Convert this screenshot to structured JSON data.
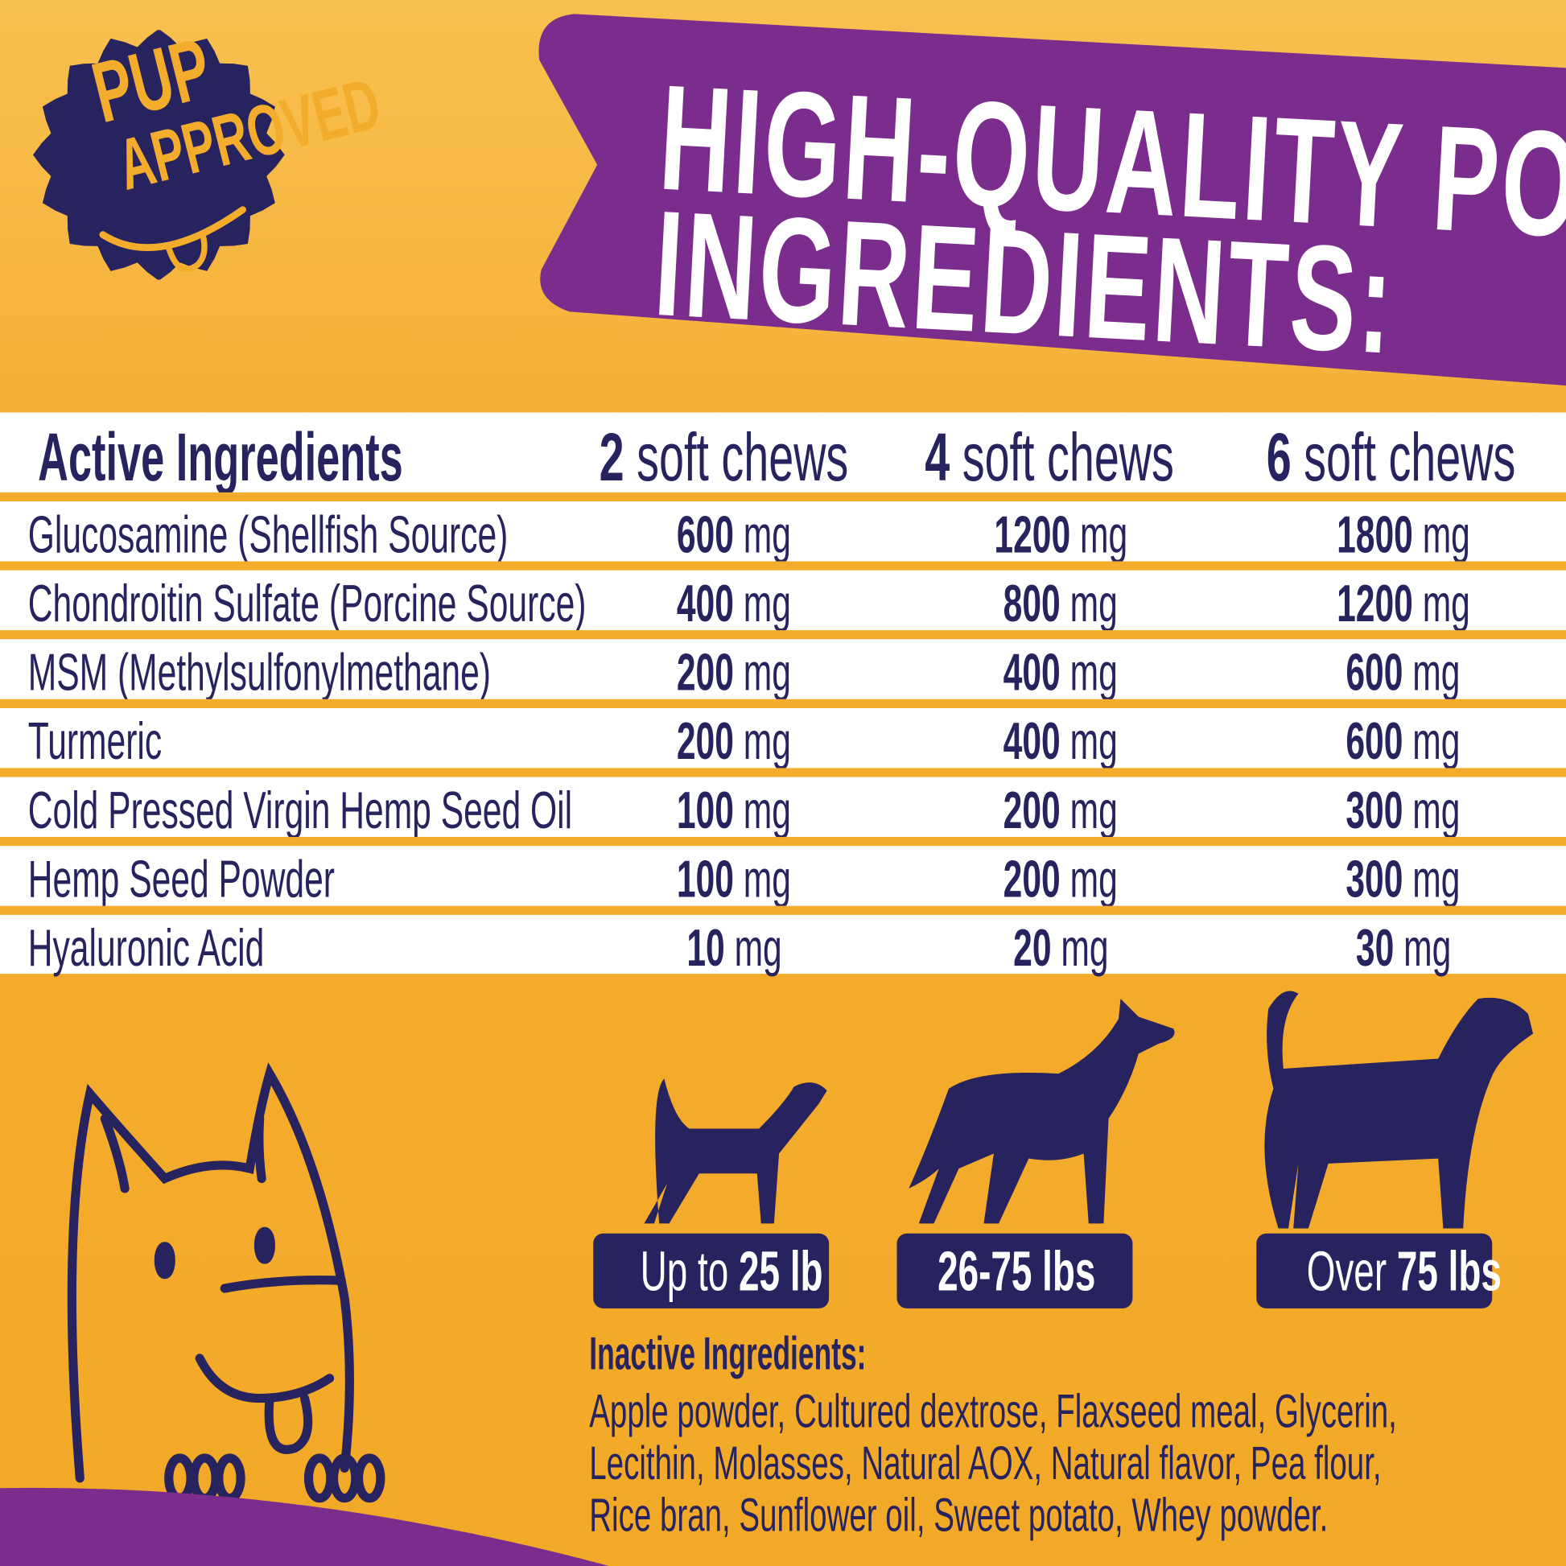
{
  "badge": {
    "line1": "PUP",
    "line2": "APPROVED"
  },
  "title": {
    "line1": "HIGH-QUALITY POWERFUL",
    "line2": "INGREDIENTS:"
  },
  "table": {
    "header": {
      "label": "Active Ingredients",
      "cols": [
        {
          "num": "2",
          "unit": "soft chews"
        },
        {
          "num": "4",
          "unit": "soft chews"
        },
        {
          "num": "6",
          "unit": "soft chews"
        }
      ]
    },
    "rows": [
      {
        "name": "Glucosamine (Shellfish Source)",
        "values": [
          "600",
          "1200",
          "1800"
        ]
      },
      {
        "name": "Chondroitin Sulfate (Porcine Source)",
        "values": [
          "400",
          "800",
          "1200"
        ]
      },
      {
        "name": "MSM (Methylsulfonylmethane)",
        "values": [
          "200",
          "400",
          "600"
        ]
      },
      {
        "name": "Turmeric",
        "values": [
          "200",
          "400",
          "600"
        ]
      },
      {
        "name": "Cold Pressed Virgin Hemp Seed Oil",
        "values": [
          "100",
          "200",
          "300"
        ]
      },
      {
        "name": "Hemp Seed Powder",
        "values": [
          "100",
          "200",
          "300"
        ]
      },
      {
        "name": "Hyaluronic Acid",
        "values": [
          "10",
          "20",
          "30"
        ]
      }
    ],
    "unit": "mg"
  },
  "weights": [
    {
      "pre": "Up to ",
      "bold": "25 lb"
    },
    {
      "pre": "",
      "bold": "26-75 lbs"
    },
    {
      "pre": "Over ",
      "bold": "75 lbs"
    }
  ],
  "inactive": {
    "heading": "Inactive Ingredients:",
    "lines": [
      "Apple powder, Cultured dextrose, Flaxseed meal, Glycerin,",
      "Lecithin, Molasses, Natural AOX, Natural flavor, Pea flour,",
      "Rice bran, Sunflower oil, Sweet potato, Whey powder."
    ]
  },
  "colors": {
    "orange": "#F4AC2C",
    "purple": "#7B2D8E",
    "navy": "#27235E",
    "white": "#FFFFFF"
  }
}
